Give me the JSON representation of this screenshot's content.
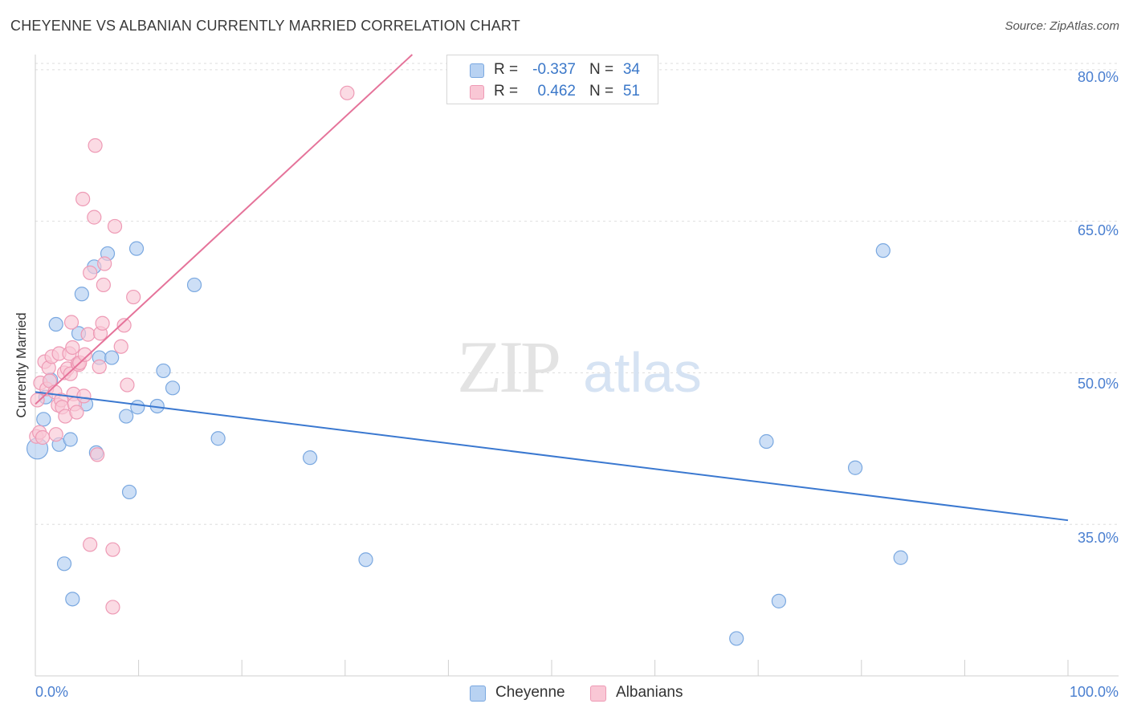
{
  "header": {
    "title": "CHEYENNE VS ALBANIAN CURRENTLY MARRIED CORRELATION CHART",
    "source": "Source: ZipAtlas.com"
  },
  "watermark": {
    "zip": "ZIP",
    "atlas": "atlas"
  },
  "legend": {
    "r_label": "R =",
    "n_label": "N =",
    "rows": [
      {
        "r": "-0.337",
        "n": "34"
      },
      {
        "r": "0.462",
        "n": "51"
      }
    ]
  },
  "colors": {
    "cheyenne_fill": "#b8d2f2",
    "cheyenne_stroke": "#7aa8e0",
    "cheyenne_line": "#3a78d0",
    "albanian_fill": "#f9c7d5",
    "albanian_stroke": "#ee9ab5",
    "albanian_line": "#e5739a",
    "tick_text": "#4a7fd0",
    "grid": "#dedede"
  },
  "chart_data": {
    "type": "scatter",
    "title": "CHEYENNE VS ALBANIAN CURRENTLY MARRIED CORRELATION CHART",
    "xlabel": "",
    "ylabel": "Currently Married",
    "xlim": [
      0,
      100
    ],
    "ylim": [
      20,
      81.5
    ],
    "x_tick_labels": [
      "0.0%",
      "100.0%"
    ],
    "y_ticks": [
      35,
      50,
      65,
      80
    ],
    "y_tick_labels": [
      "35.0%",
      "50.0%",
      "65.0%",
      "80.0%"
    ],
    "legend_position": "bottom-center",
    "series": [
      {
        "name": "Cheyenne",
        "r": -0.337,
        "n": 34,
        "trend": {
          "x": [
            0,
            100
          ],
          "y": [
            48.1,
            35.4
          ]
        },
        "points": [
          {
            "x": 0.2,
            "y": 42.5
          },
          {
            "x": 0.8,
            "y": 45.4
          },
          {
            "x": 1.0,
            "y": 47.6
          },
          {
            "x": 1.5,
            "y": 49.3
          },
          {
            "x": 2.0,
            "y": 54.8
          },
          {
            "x": 2.3,
            "y": 42.9
          },
          {
            "x": 2.8,
            "y": 31.1
          },
          {
            "x": 3.4,
            "y": 43.4
          },
          {
            "x": 3.6,
            "y": 27.6
          },
          {
            "x": 4.2,
            "y": 53.9
          },
          {
            "x": 4.5,
            "y": 57.8
          },
          {
            "x": 4.9,
            "y": 46.9
          },
          {
            "x": 5.7,
            "y": 60.5
          },
          {
            "x": 5.9,
            "y": 42.1
          },
          {
            "x": 6.2,
            "y": 51.5
          },
          {
            "x": 7.0,
            "y": 61.8
          },
          {
            "x": 7.4,
            "y": 51.5
          },
          {
            "x": 8.8,
            "y": 45.7
          },
          {
            "x": 9.1,
            "y": 38.2
          },
          {
            "x": 9.9,
            "y": 46.6
          },
          {
            "x": 9.8,
            "y": 62.3
          },
          {
            "x": 11.8,
            "y": 46.7
          },
          {
            "x": 12.4,
            "y": 50.2
          },
          {
            "x": 13.3,
            "y": 48.5
          },
          {
            "x": 15.4,
            "y": 58.7
          },
          {
            "x": 17.7,
            "y": 43.5
          },
          {
            "x": 26.6,
            "y": 41.6
          },
          {
            "x": 32.0,
            "y": 31.5
          },
          {
            "x": 67.9,
            "y": 23.7
          },
          {
            "x": 70.8,
            "y": 43.2
          },
          {
            "x": 72.0,
            "y": 27.4
          },
          {
            "x": 79.4,
            "y": 40.6
          },
          {
            "x": 82.1,
            "y": 62.1
          },
          {
            "x": 83.8,
            "y": 31.7
          }
        ]
      },
      {
        "name": "Albanians",
        "r": 0.462,
        "n": 51,
        "trend": {
          "x": [
            0,
            36.5
          ],
          "y": [
            46.9,
            81.5
          ]
        },
        "points": [
          {
            "x": 0.1,
            "y": 43.7
          },
          {
            "x": 0.2,
            "y": 47.3
          },
          {
            "x": 0.4,
            "y": 44.1
          },
          {
            "x": 0.5,
            "y": 49.0
          },
          {
            "x": 0.7,
            "y": 43.6
          },
          {
            "x": 0.9,
            "y": 51.1
          },
          {
            "x": 1.1,
            "y": 48.4
          },
          {
            "x": 1.3,
            "y": 50.5
          },
          {
            "x": 1.4,
            "y": 49.2
          },
          {
            "x": 1.6,
            "y": 51.6
          },
          {
            "x": 1.9,
            "y": 48.1
          },
          {
            "x": 2.0,
            "y": 43.9
          },
          {
            "x": 2.2,
            "y": 46.8
          },
          {
            "x": 2.3,
            "y": 51.9
          },
          {
            "x": 2.5,
            "y": 47.3
          },
          {
            "x": 2.6,
            "y": 46.6
          },
          {
            "x": 2.8,
            "y": 50.0
          },
          {
            "x": 2.9,
            "y": 45.7
          },
          {
            "x": 3.1,
            "y": 50.4
          },
          {
            "x": 3.3,
            "y": 51.9
          },
          {
            "x": 3.4,
            "y": 49.9
          },
          {
            "x": 3.5,
            "y": 55.0
          },
          {
            "x": 3.6,
            "y": 52.5
          },
          {
            "x": 3.7,
            "y": 47.9
          },
          {
            "x": 3.8,
            "y": 46.9
          },
          {
            "x": 4.0,
            "y": 46.1
          },
          {
            "x": 4.1,
            "y": 50.9
          },
          {
            "x": 4.2,
            "y": 50.8
          },
          {
            "x": 4.3,
            "y": 51.0
          },
          {
            "x": 4.7,
            "y": 47.7
          },
          {
            "x": 4.6,
            "y": 67.2
          },
          {
            "x": 4.8,
            "y": 51.8
          },
          {
            "x": 5.1,
            "y": 53.8
          },
          {
            "x": 5.3,
            "y": 59.9
          },
          {
            "x": 5.3,
            "y": 33.0
          },
          {
            "x": 5.7,
            "y": 65.4
          },
          {
            "x": 5.8,
            "y": 72.5
          },
          {
            "x": 6.0,
            "y": 41.9
          },
          {
            "x": 6.2,
            "y": 50.6
          },
          {
            "x": 6.3,
            "y": 53.9
          },
          {
            "x": 6.5,
            "y": 54.9
          },
          {
            "x": 6.6,
            "y": 58.7
          },
          {
            "x": 6.7,
            "y": 60.8
          },
          {
            "x": 7.5,
            "y": 32.5
          },
          {
            "x": 7.5,
            "y": 26.8
          },
          {
            "x": 7.7,
            "y": 64.5
          },
          {
            "x": 8.3,
            "y": 52.6
          },
          {
            "x": 8.6,
            "y": 54.7
          },
          {
            "x": 8.9,
            "y": 48.8
          },
          {
            "x": 9.5,
            "y": 57.5
          },
          {
            "x": 30.2,
            "y": 77.7
          }
        ]
      }
    ]
  }
}
